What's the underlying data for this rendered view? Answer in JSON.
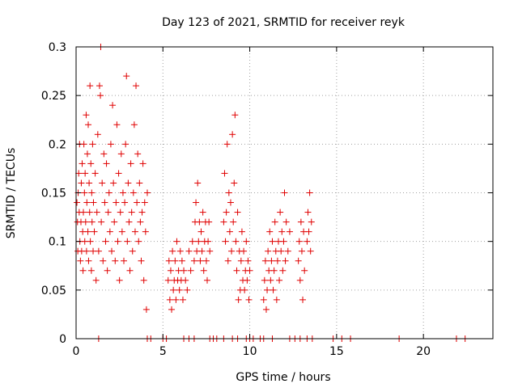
{
  "chart_data": {
    "type": "scatter",
    "title": "Day 123 of 2021, SRMTID for receiver reyk",
    "xlabel": "GPS time / hours",
    "ylabel": "SRMTID / TECUs",
    "xlim": [
      0,
      24
    ],
    "ylim": [
      0,
      0.3
    ],
    "xticks": [
      "0",
      "5",
      "10",
      "15",
      "20"
    ],
    "yticks": [
      "0",
      "0.05",
      "0.1",
      "0.15",
      "0.2",
      "0.25",
      "0.3"
    ],
    "grid": true,
    "marker": "plus",
    "color": "#e00000",
    "series": [
      {
        "points": [
          [
            0.05,
            0.14
          ],
          [
            0.08,
            0.12
          ],
          [
            0.1,
            0.09
          ],
          [
            0.12,
            0.15
          ],
          [
            0.15,
            0.17
          ],
          [
            0.18,
            0.13
          ],
          [
            0.2,
            0.2
          ],
          [
            0.22,
            0.1
          ],
          [
            0.25,
            0.08
          ],
          [
            0.28,
            0.12
          ],
          [
            0.3,
            0.16
          ],
          [
            0.32,
            0.09
          ],
          [
            0.35,
            0.18
          ],
          [
            0.38,
            0.11
          ],
          [
            0.4,
            0.07
          ],
          [
            0.42,
            0.13
          ],
          [
            0.45,
            0.2
          ],
          [
            0.48,
            0.15
          ],
          [
            0.5,
            0.1
          ],
          [
            0.52,
            0.17
          ],
          [
            0.55,
            0.12
          ],
          [
            0.58,
            0.23
          ],
          [
            0.6,
            0.09
          ],
          [
            0.62,
            0.14
          ],
          [
            0.65,
            0.19
          ],
          [
            0.68,
            0.11
          ],
          [
            0.7,
            0.22
          ],
          [
            0.72,
            0.08
          ],
          [
            0.75,
            0.16
          ],
          [
            0.78,
            0.13
          ],
          [
            0.8,
            0.26
          ],
          [
            0.82,
            0.1
          ],
          [
            0.85,
            0.18
          ],
          [
            0.88,
            0.07
          ],
          [
            0.9,
            0.15
          ],
          [
            0.92,
            0.12
          ],
          [
            0.95,
            0.2
          ],
          [
            0.98,
            0.09
          ],
          [
            1.0,
            0.14
          ],
          [
            1.05,
            0.11
          ],
          [
            1.1,
            0.17
          ],
          [
            1.15,
            0.06
          ],
          [
            1.2,
            0.13
          ],
          [
            1.25,
            0.21
          ],
          [
            1.3,
            0.09
          ],
          [
            1.35,
            0.26
          ],
          [
            1.4,
            0.25
          ],
          [
            1.42,
            0.3
          ],
          [
            1.45,
            0.12
          ],
          [
            1.5,
            0.16
          ],
          [
            1.55,
            0.08
          ],
          [
            1.6,
            0.19
          ],
          [
            1.65,
            0.14
          ],
          [
            1.7,
            0.1
          ],
          [
            1.75,
            0.18
          ],
          [
            1.8,
            0.07
          ],
          [
            1.85,
            0.13
          ],
          [
            1.9,
            0.15
          ],
          [
            1.95,
            0.11
          ],
          [
            2.0,
            0.2
          ],
          [
            2.05,
            0.09
          ],
          [
            2.1,
            0.24
          ],
          [
            2.15,
            0.16
          ],
          [
            2.2,
            0.12
          ],
          [
            2.25,
            0.08
          ],
          [
            2.3,
            0.14
          ],
          [
            2.35,
            0.22
          ],
          [
            2.4,
            0.1
          ],
          [
            2.45,
            0.17
          ],
          [
            2.5,
            0.06
          ],
          [
            2.55,
            0.13
          ],
          [
            2.6,
            0.19
          ],
          [
            2.65,
            0.11
          ],
          [
            2.7,
            0.15
          ],
          [
            2.75,
            0.08
          ],
          [
            2.8,
            0.14
          ],
          [
            2.85,
            0.2
          ],
          [
            2.9,
            0.27
          ],
          [
            2.95,
            0.1
          ],
          [
            3.0,
            0.16
          ],
          [
            3.05,
            0.12
          ],
          [
            3.1,
            0.07
          ],
          [
            3.15,
            0.18
          ],
          [
            3.2,
            0.13
          ],
          [
            3.25,
            0.09
          ],
          [
            3.3,
            0.15
          ],
          [
            3.35,
            0.22
          ],
          [
            3.4,
            0.11
          ],
          [
            3.45,
            0.26
          ],
          [
            3.5,
            0.14
          ],
          [
            3.55,
            0.19
          ],
          [
            3.6,
            0.1
          ],
          [
            3.65,
            0.16
          ],
          [
            3.7,
            0.12
          ],
          [
            3.75,
            0.08
          ],
          [
            3.8,
            0.13
          ],
          [
            3.85,
            0.18
          ],
          [
            3.9,
            0.06
          ],
          [
            3.95,
            0.14
          ],
          [
            4.0,
            0.11
          ],
          [
            4.05,
            0.03
          ],
          [
            4.1,
            0.15
          ],
          [
            5.3,
            0.06
          ],
          [
            5.35,
            0.08
          ],
          [
            5.4,
            0.04
          ],
          [
            5.45,
            0.07
          ],
          [
            5.5,
            0.03
          ],
          [
            5.55,
            0.09
          ],
          [
            5.6,
            0.05
          ],
          [
            5.65,
            0.06
          ],
          [
            5.7,
            0.08
          ],
          [
            5.75,
            0.04
          ],
          [
            5.8,
            0.1
          ],
          [
            5.85,
            0.06
          ],
          [
            5.9,
            0.07
          ],
          [
            5.95,
            0.05
          ],
          [
            6.0,
            0.09
          ],
          [
            6.05,
            0.06
          ],
          [
            6.1,
            0.08
          ],
          [
            6.15,
            0.04
          ],
          [
            6.2,
            0.07
          ],
          [
            6.3,
            0.06
          ],
          [
            6.4,
            0.05
          ],
          [
            6.5,
            0.09
          ],
          [
            6.6,
            0.07
          ],
          [
            6.7,
            0.1
          ],
          [
            6.8,
            0.08
          ],
          [
            6.85,
            0.12
          ],
          [
            6.9,
            0.14
          ],
          [
            6.95,
            0.09
          ],
          [
            7.0,
            0.16
          ],
          [
            7.05,
            0.1
          ],
          [
            7.1,
            0.12
          ],
          [
            7.15,
            0.08
          ],
          [
            7.2,
            0.11
          ],
          [
            7.25,
            0.09
          ],
          [
            7.3,
            0.13
          ],
          [
            7.35,
            0.07
          ],
          [
            7.4,
            0.1
          ],
          [
            7.45,
            0.12
          ],
          [
            7.5,
            0.08
          ],
          [
            7.55,
            0.06
          ],
          [
            7.6,
            0.1
          ],
          [
            7.65,
            0.12
          ],
          [
            7.7,
            0.09
          ],
          [
            8.5,
            0.12
          ],
          [
            8.55,
            0.17
          ],
          [
            8.6,
            0.1
          ],
          [
            8.65,
            0.13
          ],
          [
            8.7,
            0.2
          ],
          [
            8.75,
            0.08
          ],
          [
            8.8,
            0.15
          ],
          [
            8.85,
            0.11
          ],
          [
            8.9,
            0.14
          ],
          [
            8.95,
            0.09
          ],
          [
            9.0,
            0.21
          ],
          [
            9.05,
            0.12
          ],
          [
            9.1,
            0.16
          ],
          [
            9.15,
            0.23
          ],
          [
            9.2,
            0.1
          ],
          [
            9.25,
            0.07
          ],
          [
            9.3,
            0.13
          ],
          [
            9.35,
            0.04
          ],
          [
            9.4,
            0.09
          ],
          [
            9.45,
            0.05
          ],
          [
            9.5,
            0.08
          ],
          [
            9.55,
            0.11
          ],
          [
            9.6,
            0.06
          ],
          [
            9.65,
            0.09
          ],
          [
            9.7,
            0.05
          ],
          [
            9.75,
            0.07
          ],
          [
            9.8,
            0.1
          ],
          [
            9.85,
            0.06
          ],
          [
            9.9,
            0.08
          ],
          [
            9.95,
            0.04
          ],
          [
            10.0,
            0.07
          ],
          [
            10.8,
            0.04
          ],
          [
            10.85,
            0.06
          ],
          [
            10.9,
            0.08
          ],
          [
            10.95,
            0.03
          ],
          [
            11.0,
            0.05
          ],
          [
            11.05,
            0.09
          ],
          [
            11.1,
            0.07
          ],
          [
            11.15,
            0.11
          ],
          [
            11.2,
            0.06
          ],
          [
            11.25,
            0.08
          ],
          [
            11.3,
            0.1
          ],
          [
            11.35,
            0.05
          ],
          [
            11.4,
            0.07
          ],
          [
            11.45,
            0.12
          ],
          [
            11.5,
            0.09
          ],
          [
            11.55,
            0.04
          ],
          [
            11.6,
            0.08
          ],
          [
            11.65,
            0.1
          ],
          [
            11.7,
            0.06
          ],
          [
            11.75,
            0.13
          ],
          [
            11.8,
            0.09
          ],
          [
            11.85,
            0.11
          ],
          [
            11.9,
            0.07
          ],
          [
            11.95,
            0.1
          ],
          [
            12.0,
            0.15
          ],
          [
            12.05,
            0.08
          ],
          [
            12.1,
            0.12
          ],
          [
            12.2,
            0.09
          ],
          [
            12.3,
            0.11
          ],
          [
            12.8,
            0.08
          ],
          [
            12.85,
            0.1
          ],
          [
            12.9,
            0.06
          ],
          [
            12.95,
            0.12
          ],
          [
            13.0,
            0.09
          ],
          [
            13.05,
            0.04
          ],
          [
            13.1,
            0.11
          ],
          [
            13.15,
            0.07
          ],
          [
            13.3,
            0.1
          ],
          [
            13.35,
            0.13
          ],
          [
            13.4,
            0.11
          ],
          [
            13.45,
            0.15
          ],
          [
            13.5,
            0.09
          ],
          [
            13.55,
            0.12
          ],
          [
            1.3,
            0.0
          ],
          [
            4.1,
            0.0
          ],
          [
            4.3,
            0.0
          ],
          [
            5.0,
            0.0
          ],
          [
            5.2,
            0.0
          ],
          [
            6.2,
            0.0
          ],
          [
            6.5,
            0.0
          ],
          [
            6.8,
            0.0
          ],
          [
            7.7,
            0.0
          ],
          [
            7.9,
            0.0
          ],
          [
            8.1,
            0.0
          ],
          [
            8.5,
            0.0
          ],
          [
            9.0,
            0.0
          ],
          [
            9.3,
            0.0
          ],
          [
            9.8,
            0.0
          ],
          [
            10.0,
            0.0
          ],
          [
            10.2,
            0.0
          ],
          [
            10.6,
            0.0
          ],
          [
            10.8,
            0.0
          ],
          [
            11.3,
            0.0
          ],
          [
            12.3,
            0.0
          ],
          [
            12.6,
            0.0
          ],
          [
            12.9,
            0.0
          ],
          [
            13.3,
            0.0
          ],
          [
            13.6,
            0.0
          ],
          [
            14.8,
            0.0
          ],
          [
            15.3,
            0.0
          ],
          [
            15.8,
            0.0
          ],
          [
            18.6,
            0.0
          ],
          [
            21.9,
            0.0
          ],
          [
            22.4,
            0.0
          ]
        ]
      }
    ]
  }
}
